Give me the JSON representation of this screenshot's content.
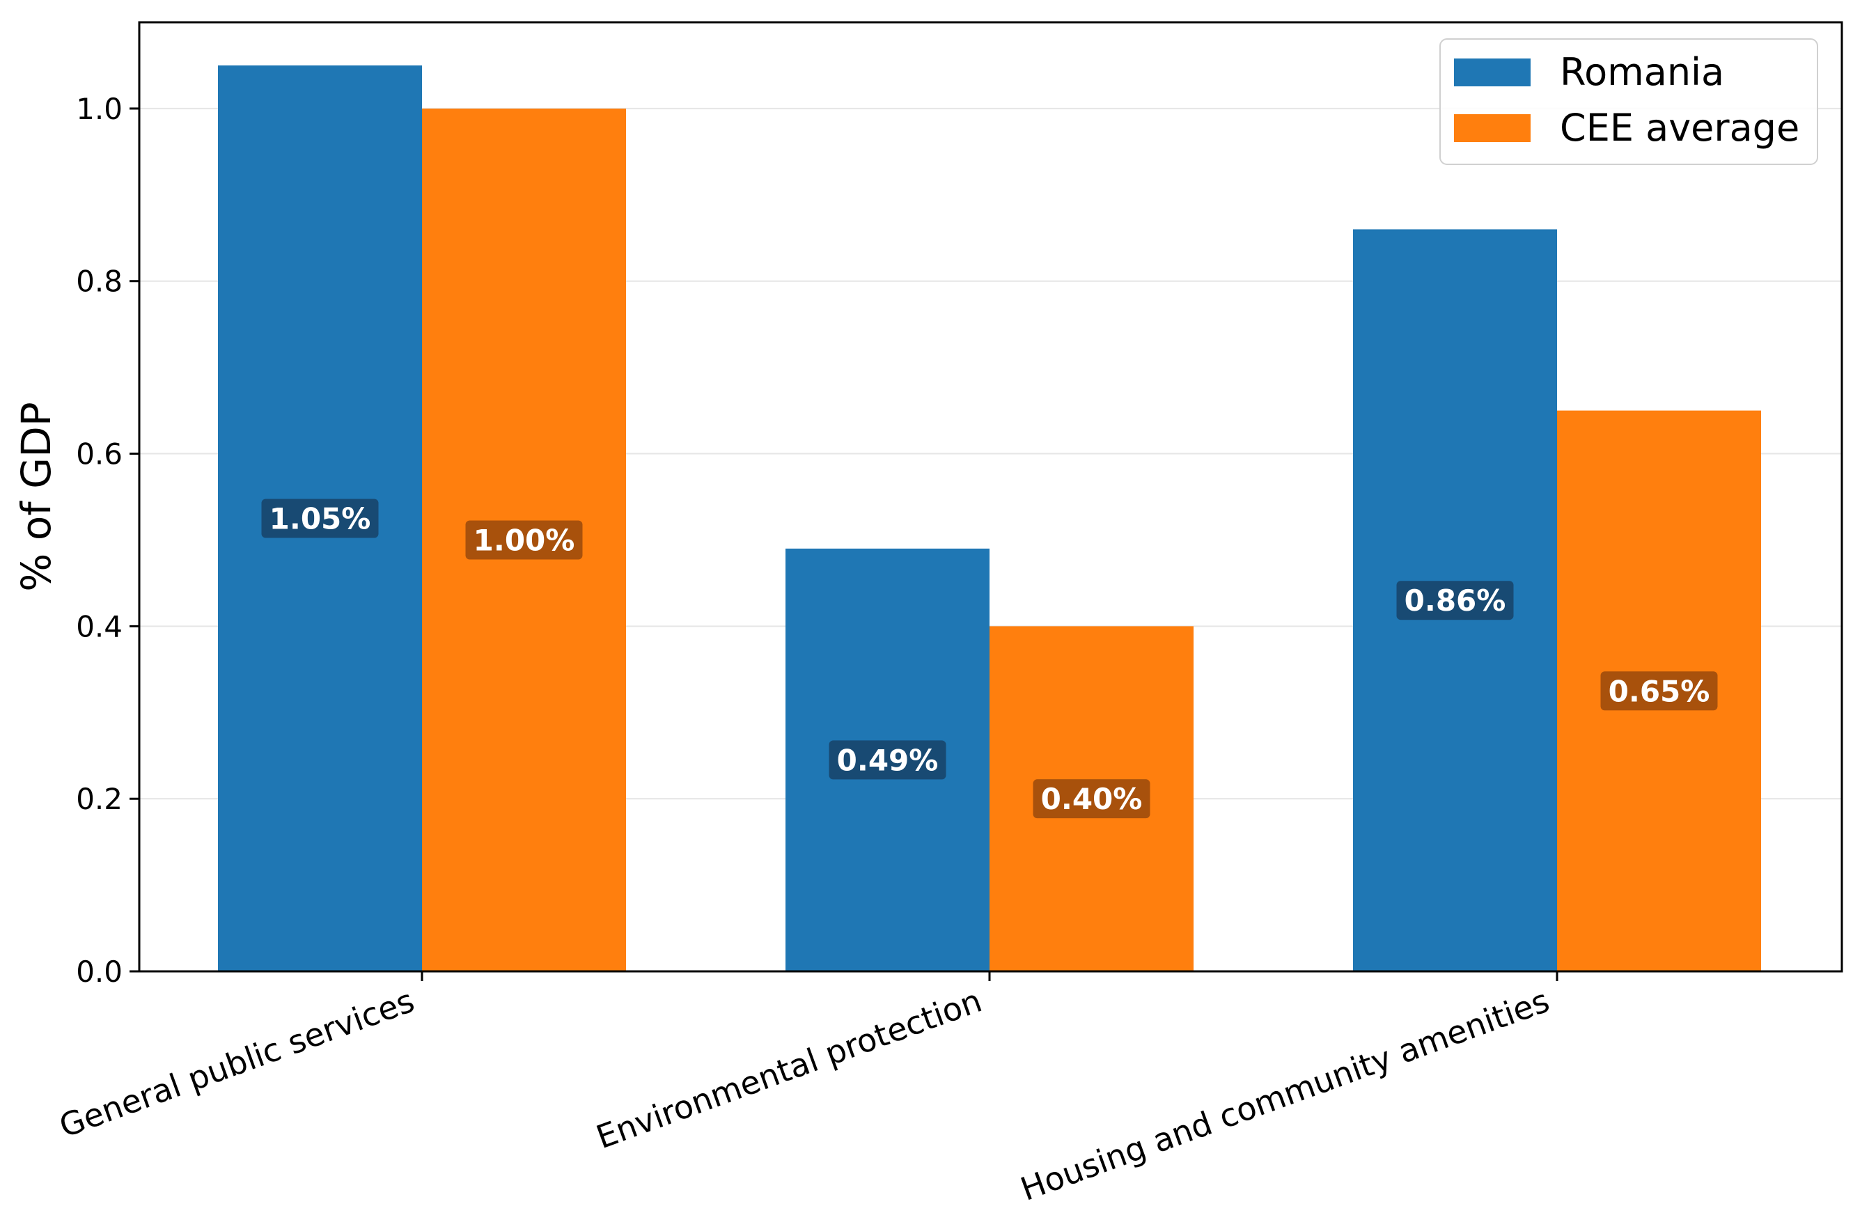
{
  "chart_data": {
    "type": "bar",
    "title": "",
    "xlabel": "",
    "ylabel": "% of GDP",
    "categories": [
      "General public services",
      "Environmental protection",
      "Housing and community amenities"
    ],
    "series": [
      {
        "name": "Romania",
        "values": [
          1.05,
          0.49,
          0.86
        ],
        "labels": [
          "1.05%",
          "0.49%",
          "0.86%"
        ],
        "color": "#1f77b4",
        "label_bg": "#17456b"
      },
      {
        "name": "CEE average",
        "values": [
          1.0,
          0.4,
          0.65
        ],
        "labels": [
          "1.00%",
          "0.40%",
          "0.65%"
        ],
        "color": "#ff7f0e",
        "label_bg": "#9e4d0c"
      }
    ],
    "ylim": [
      0,
      1.1
    ],
    "yticks": [
      0.0,
      0.2,
      0.4,
      0.6,
      0.8,
      1.0
    ],
    "ytick_labels": [
      "0.0",
      "0.2",
      "0.4",
      "0.6",
      "0.8",
      "1.0"
    ],
    "grid": "horizontal",
    "legend": "top-right"
  }
}
